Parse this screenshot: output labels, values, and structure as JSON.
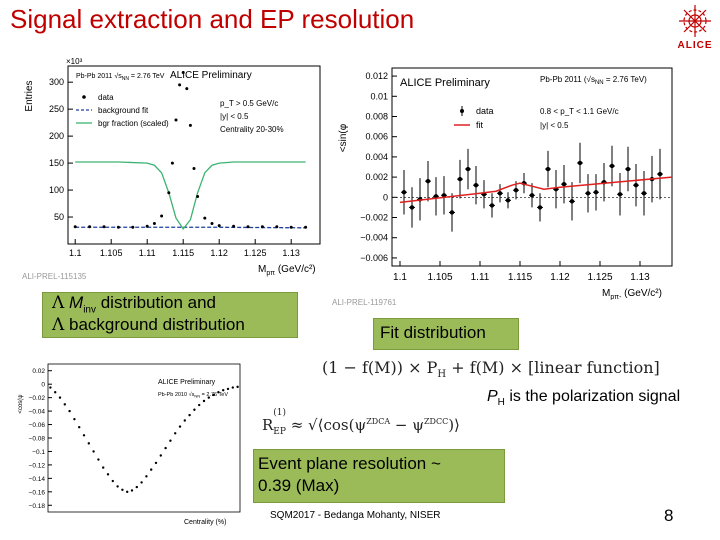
{
  "slide": {
    "title": "Signal extraction and EP resolution",
    "logo_text": "ALICE",
    "page_number": "8",
    "footer": "SQM2017 - Bedanga Mohanty, NISER"
  },
  "captions": {
    "minv_line1_sym": "Λ",
    "minv_line1_var": "M",
    "minv_line1_sub": "inv",
    "minv_line1_rest": " distribution and",
    "minv_line2_sym": "Λ",
    "minv_line2_rest": " background distribution",
    "fit": "Fit distribution",
    "formula": "(1 − f(M)) × P",
    "formula_sub": "H",
    "formula_rest": " + f(M) × [linear function]",
    "polarization_P": "P",
    "polarization_sub": "H",
    "polarization_rest": " is the polarization signal",
    "ep_lhs": "R",
    "ep_lhs_sup": "(1)",
    "ep_lhs_sub": "EP",
    "ep_rhs": "≈ √⟨cos(ψ",
    "ep_rhs_2": " − ψ",
    "ep_rhs_3": ")⟩",
    "ep_zdca": "ZDCA",
    "ep_zdcc": "ZDCC",
    "ep_res_line1": "Event plane resolution ~",
    "ep_res_line2": "0.39 (Max)"
  },
  "colors": {
    "title": "#c00000",
    "caption_box": "#9bbb59",
    "data": "#000000",
    "background_fit": "#1f3f9f",
    "bgr_fraction": "#3cb371",
    "fit": "#e02020"
  },
  "chart_data": [
    {
      "type": "line",
      "id": "minv",
      "xlabel": "M",
      "xlabel_sub": "pπ",
      "xlabel_unit": "(GeV/c²)",
      "ylabel": "Entries",
      "yscale_label": "×10³",
      "xticks": [
        "1.1",
        "1.105",
        "1.11",
        "1.115",
        "1.12",
        "1.125",
        "1.13"
      ],
      "yticks": [
        "50",
        "100",
        "150",
        "200",
        "250",
        "300"
      ],
      "xlim": [
        1.099,
        1.134
      ],
      "ylim": [
        0,
        330
      ],
      "header": "ALICE Preliminary",
      "collision": "Pb-Pb 2011 √s",
      "collision_sub": "NN",
      "collision_rest": " = 2.76 TeV",
      "cuts": [
        "p_T > 0.5 GeV/c",
        "|y| < 0.5",
        "Centrality 20-30%"
      ],
      "legend": [
        "data",
        "background fit",
        "bgr fraction (scaled)"
      ],
      "series": [
        {
          "name": "data",
          "x": [
            1.1,
            1.102,
            1.104,
            1.106,
            1.108,
            1.11,
            1.111,
            1.112,
            1.113,
            1.1135,
            1.114,
            1.1145,
            1.115,
            1.1155,
            1.116,
            1.1165,
            1.117,
            1.118,
            1.119,
            1.12,
            1.122,
            1.124,
            1.126,
            1.128,
            1.13,
            1.132
          ],
          "y": [
            32,
            32,
            32,
            31,
            31,
            33,
            38,
            52,
            95,
            150,
            230,
            295,
            318,
            288,
            220,
            140,
            88,
            48,
            38,
            34,
            33,
            32,
            32,
            32,
            31,
            31
          ]
        },
        {
          "name": "background fit",
          "x": [
            1.1,
            1.11,
            1.12,
            1.132
          ],
          "y": [
            31,
            31,
            31,
            30
          ]
        },
        {
          "name": "bgr fraction (scaled)",
          "x": [
            1.1,
            1.106,
            1.11,
            1.111,
            1.112,
            1.113,
            1.114,
            1.115,
            1.116,
            1.117,
            1.118,
            1.119,
            1.12,
            1.122,
            1.126,
            1.132
          ],
          "y": [
            152,
            152,
            150,
            146,
            132,
            95,
            48,
            28,
            45,
            95,
            132,
            146,
            150,
            152,
            152,
            152
          ]
        }
      ]
    },
    {
      "type": "scatter",
      "id": "fit",
      "xlabel": "M",
      "xlabel_sub": "pπ-",
      "xlabel_unit": "(GeV/c²)",
      "ylabel": "<sin(φ",
      "xticks": [
        "1.1",
        "1.105",
        "1.11",
        "1.115",
        "1.12",
        "1.125",
        "1.13"
      ],
      "yticks": [
        "0.012",
        "0.01",
        "0.008",
        "0.006",
        "0.004",
        "0.002",
        "0",
        "−0.002",
        "−0.004",
        "−0.006"
      ],
      "xlim": [
        1.099,
        1.134
      ],
      "ylim": [
        -0.0068,
        0.0128
      ],
      "header": "ALICE Preliminary",
      "collision": "Pb-Pb 2011 (√s",
      "collision_sub": "NN",
      "collision_rest": " = 2.76 TeV)",
      "cuts": [
        "0.8 < p_T < 1.1 GeV/c",
        "|y| < 0.5"
      ],
      "legend": [
        "data",
        "fit"
      ],
      "series": [
        {
          "name": "data",
          "x": [
            1.1005,
            1.1015,
            1.1025,
            1.1035,
            1.1045,
            1.1055,
            1.1065,
            1.1075,
            1.1085,
            1.1095,
            1.1105,
            1.1115,
            1.1125,
            1.1135,
            1.1145,
            1.1155,
            1.1165,
            1.1175,
            1.1185,
            1.1195,
            1.1205,
            1.1215,
            1.1225,
            1.1235,
            1.1245,
            1.1255,
            1.1265,
            1.1275,
            1.1285,
            1.1295,
            1.1305,
            1.1315,
            1.1325
          ],
          "y": [
            0.0005,
            -0.001,
            -0.0002,
            0.0016,
            0.0001,
            0.0002,
            -0.0015,
            0.0018,
            0.0028,
            0.0012,
            0.0003,
            -0.0008,
            0.0004,
            -0.0003,
            0.0007,
            0.0014,
            0.0002,
            -0.001,
            0.0028,
            0.0008,
            0.0013,
            -0.0004,
            0.0034,
            0.0004,
            0.0005,
            0.0015,
            0.0031,
            0.0003,
            0.0028,
            0.0012,
            0.0004,
            0.0018,
            0.0023
          ],
          "err": [
            0.0022,
            0.002,
            0.0021,
            0.002,
            0.0019,
            0.0019,
            0.0019,
            0.0019,
            0.002,
            0.0019,
            0.0014,
            0.0012,
            0.0009,
            0.0008,
            0.0009,
            0.001,
            0.0012,
            0.0014,
            0.0018,
            0.0019,
            0.0019,
            0.0019,
            0.002,
            0.0019,
            0.0018,
            0.0019,
            0.002,
            0.0021,
            0.0022,
            0.0021,
            0.0022,
            0.0023,
            0.0025
          ]
        },
        {
          "name": "fit",
          "x": [
            1.1,
            1.11,
            1.112,
            1.114,
            1.115,
            1.116,
            1.118,
            1.12,
            1.134
          ],
          "y": [
            -0.0005,
            0.0004,
            0.0006,
            0.0012,
            0.0014,
            0.0012,
            0.0008,
            0.001,
            0.002
          ]
        }
      ]
    },
    {
      "type": "scatter",
      "id": "resolution",
      "xlabel": "Centrality (%)",
      "ylabel": "<cos(ψ",
      "yticks": [
        "0.02",
        "0",
        "−0.02",
        "−0.04",
        "−0.06",
        "−0.08",
        "−0.1",
        "−0.12",
        "−0.14",
        "−0.16",
        "−0.18"
      ],
      "xlim": [
        0,
        80
      ],
      "ylim": [
        -0.19,
        0.03
      ],
      "header": "ALICE Preliminary",
      "collision": "Pb-Pb 2010 √s",
      "collision_sub": "NN",
      "collision_rest": " = 2.76 TeV",
      "series": [
        {
          "name": "data",
          "x": [
            1,
            3,
            5,
            7,
            9,
            11,
            13,
            15,
            17,
            19,
            21,
            23,
            25,
            27,
            29,
            31,
            33,
            35,
            37,
            39,
            41,
            43,
            45,
            47,
            49,
            51,
            53,
            55,
            57,
            59,
            61,
            63,
            65,
            67,
            69,
            71,
            73,
            75,
            77,
            79
          ],
          "y": [
            -0.005,
            -0.012,
            -0.02,
            -0.03,
            -0.04,
            -0.052,
            -0.064,
            -0.076,
            -0.088,
            -0.1,
            -0.112,
            -0.124,
            -0.134,
            -0.144,
            -0.152,
            -0.157,
            -0.16,
            -0.158,
            -0.153,
            -0.146,
            -0.137,
            -0.127,
            -0.117,
            -0.106,
            -0.095,
            -0.084,
            -0.073,
            -0.063,
            -0.054,
            -0.046,
            -0.038,
            -0.031,
            -0.025,
            -0.02,
            -0.016,
            -0.012,
            -0.009,
            -0.007,
            -0.005,
            -0.004
          ]
        }
      ]
    }
  ]
}
